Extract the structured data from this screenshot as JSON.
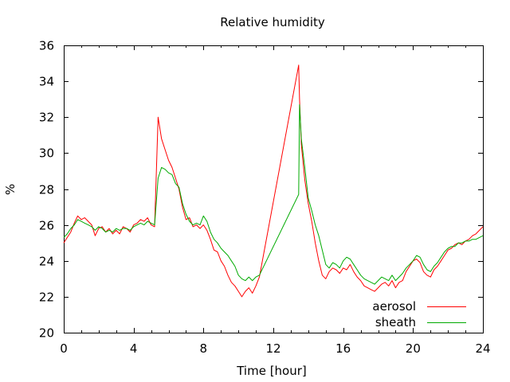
{
  "chart_data": {
    "type": "line",
    "title": "Relative humidity",
    "xlabel": "Time [hour]",
    "ylabel": "%",
    "xlim": [
      0,
      24
    ],
    "ylim": [
      20,
      36
    ],
    "xticks": [
      0,
      4,
      8,
      12,
      16,
      20,
      24
    ],
    "yticks": [
      20,
      22,
      24,
      26,
      28,
      30,
      32,
      34,
      36
    ],
    "grid": false,
    "legend_position": "bottom-right",
    "series": [
      {
        "name": "aerosol",
        "color": "#ff0000",
        "x": [
          0,
          0.2,
          0.4,
          0.6,
          0.8,
          1.0,
          1.2,
          1.4,
          1.6,
          1.8,
          2.0,
          2.2,
          2.4,
          2.6,
          2.8,
          3.0,
          3.2,
          3.4,
          3.6,
          3.8,
          4.0,
          4.2,
          4.4,
          4.6,
          4.8,
          5.0,
          5.2,
          5.4,
          5.6,
          5.8,
          6.0,
          6.2,
          6.4,
          6.6,
          6.8,
          7.0,
          7.2,
          7.4,
          7.6,
          7.8,
          8.0,
          8.2,
          8.4,
          8.6,
          8.8,
          9.0,
          9.2,
          9.4,
          9.6,
          9.8,
          10.0,
          10.2,
          10.4,
          10.6,
          10.8,
          11.0,
          11.2,
          13.45,
          13.5,
          13.6,
          13.8,
          14.0,
          14.2,
          14.4,
          14.6,
          14.8,
          15.0,
          15.2,
          15.4,
          15.6,
          15.8,
          16.0,
          16.2,
          16.4,
          16.6,
          16.8,
          17.0,
          17.2,
          17.4,
          17.6,
          17.8,
          18.0,
          18.2,
          18.4,
          18.6,
          18.8,
          19.0,
          19.2,
          19.4,
          19.6,
          19.8,
          20.0,
          20.2,
          20.4,
          20.6,
          20.8,
          21.0,
          21.2,
          21.4,
          21.6,
          21.8,
          22.0,
          22.2,
          22.4,
          22.6,
          22.8,
          23.0,
          23.2,
          23.4,
          23.6,
          23.8,
          24.0
        ],
        "y": [
          25.0,
          25.3,
          25.6,
          26.1,
          26.5,
          26.3,
          26.4,
          26.2,
          26.0,
          25.4,
          25.8,
          25.9,
          25.6,
          25.8,
          25.5,
          25.7,
          25.5,
          25.9,
          25.8,
          25.6,
          26.0,
          26.1,
          26.3,
          26.2,
          26.4,
          26.0,
          25.9,
          32.0,
          30.8,
          30.2,
          29.6,
          29.2,
          28.6,
          28.0,
          27.0,
          26.3,
          26.4,
          25.9,
          26.0,
          25.8,
          26.0,
          25.7,
          25.2,
          24.6,
          24.5,
          24.0,
          23.7,
          23.2,
          22.8,
          22.6,
          22.3,
          22.0,
          22.3,
          22.5,
          22.2,
          22.6,
          23.1,
          34.9,
          33.0,
          30.5,
          28.5,
          27.2,
          26.2,
          25.0,
          24.0,
          23.2,
          23.0,
          23.4,
          23.6,
          23.5,
          23.3,
          23.6,
          23.5,
          23.8,
          23.4,
          23.1,
          22.9,
          22.6,
          22.5,
          22.4,
          22.3,
          22.5,
          22.7,
          22.8,
          22.6,
          22.9,
          22.5,
          22.8,
          22.9,
          23.4,
          23.7,
          24.0,
          24.1,
          23.9,
          23.4,
          23.2,
          23.1,
          23.5,
          23.7,
          24.0,
          24.3,
          24.6,
          24.7,
          24.9,
          25.0,
          24.9,
          25.1,
          25.2,
          25.4,
          25.5,
          25.7,
          25.9
        ]
      },
      {
        "name": "sheath",
        "color": "#00aa00",
        "x": [
          0,
          0.2,
          0.4,
          0.6,
          0.8,
          1.0,
          1.2,
          1.4,
          1.6,
          1.8,
          2.0,
          2.2,
          2.4,
          2.6,
          2.8,
          3.0,
          3.2,
          3.4,
          3.6,
          3.8,
          4.0,
          4.2,
          4.4,
          4.6,
          4.8,
          5.0,
          5.2,
          5.4,
          5.6,
          5.8,
          6.0,
          6.2,
          6.4,
          6.6,
          6.8,
          7.0,
          7.2,
          7.4,
          7.6,
          7.8,
          8.0,
          8.2,
          8.4,
          8.6,
          8.8,
          9.0,
          9.2,
          9.4,
          9.6,
          9.8,
          10.0,
          10.2,
          10.4,
          10.6,
          10.8,
          11.0,
          11.2,
          13.45,
          13.5,
          13.6,
          13.8,
          14.0,
          14.2,
          14.4,
          14.6,
          14.8,
          15.0,
          15.2,
          15.4,
          15.6,
          15.8,
          16.0,
          16.2,
          16.4,
          16.6,
          16.8,
          17.0,
          17.2,
          17.4,
          17.6,
          17.8,
          18.0,
          18.2,
          18.4,
          18.6,
          18.8,
          19.0,
          19.2,
          19.4,
          19.6,
          19.8,
          20.0,
          20.2,
          20.4,
          20.6,
          20.8,
          21.0,
          21.2,
          21.4,
          21.6,
          21.8,
          22.0,
          22.2,
          22.4,
          22.6,
          22.8,
          23.0,
          23.2,
          23.4,
          23.6,
          23.8,
          24.0
        ],
        "y": [
          25.3,
          25.5,
          25.8,
          26.0,
          26.3,
          26.2,
          26.1,
          26.0,
          25.9,
          25.7,
          25.9,
          25.8,
          25.6,
          25.7,
          25.6,
          25.8,
          25.7,
          25.8,
          25.8,
          25.7,
          25.9,
          26.0,
          26.1,
          26.0,
          26.2,
          26.1,
          26.0,
          28.6,
          29.2,
          29.1,
          28.9,
          28.8,
          28.3,
          28.1,
          27.2,
          26.6,
          26.2,
          26.0,
          26.1,
          26.0,
          26.5,
          26.2,
          25.6,
          25.2,
          25.0,
          24.7,
          24.5,
          24.3,
          24.0,
          23.7,
          23.2,
          23.0,
          22.9,
          23.1,
          22.9,
          23.1,
          23.2,
          27.7,
          32.7,
          30.8,
          29.2,
          27.5,
          26.8,
          26.0,
          25.4,
          24.6,
          23.8,
          23.6,
          23.9,
          23.8,
          23.6,
          24.0,
          24.2,
          24.1,
          23.8,
          23.5,
          23.2,
          23.0,
          22.9,
          22.8,
          22.7,
          22.9,
          23.1,
          23.0,
          22.9,
          23.2,
          22.9,
          23.1,
          23.3,
          23.6,
          23.8,
          24.0,
          24.3,
          24.2,
          23.8,
          23.5,
          23.4,
          23.7,
          23.9,
          24.2,
          24.5,
          24.7,
          24.8,
          24.8,
          25.0,
          25.0,
          25.1,
          25.1,
          25.2,
          25.2,
          25.3,
          25.4
        ]
      }
    ]
  }
}
